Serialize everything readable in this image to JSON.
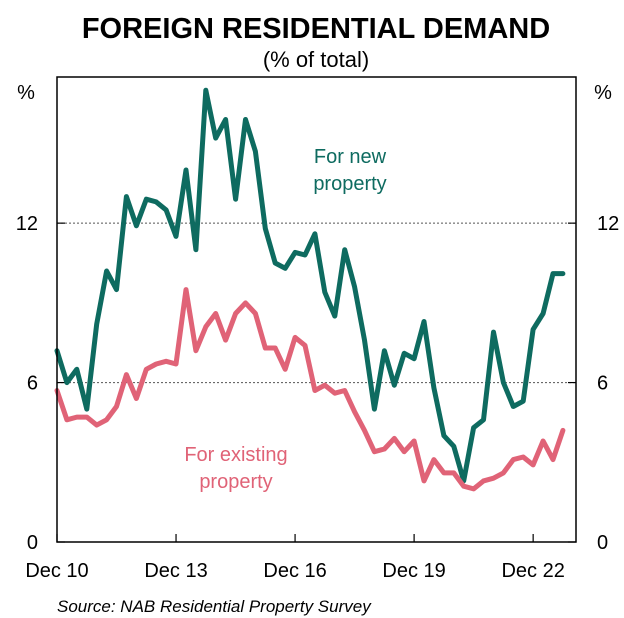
{
  "chart_data": {
    "type": "line",
    "title": "FOREIGN RESIDENTIAL DEMAND",
    "subtitle": "(% of total)",
    "ylabel_left": "%",
    "ylabel_right": "%",
    "ylim": [
      0,
      17.5
    ],
    "yticks": [
      "0",
      "6",
      "12"
    ],
    "ytick_values": [
      0,
      6,
      12
    ],
    "xticks": [
      "Dec 10",
      "Dec 13",
      "Dec 16",
      "Dec 19",
      "Dec 22"
    ],
    "xtick_values": [
      2010.92,
      2013.92,
      2016.92,
      2019.92,
      2022.92
    ],
    "xlim": [
      2010.92,
      2024.0
    ],
    "grid": "dashed horizontal at 6 and 12",
    "source": "Source: NAB Residential Property Survey",
    "series": [
      {
        "name": "For new property",
        "label": [
          "For new",
          "property"
        ],
        "color": "#0e6b60",
        "x": [
          2010.92,
          2011.17,
          2011.42,
          2011.67,
          2011.92,
          2012.17,
          2012.42,
          2012.67,
          2012.92,
          2013.17,
          2013.42,
          2013.67,
          2013.92,
          2014.17,
          2014.42,
          2014.67,
          2014.92,
          2015.17,
          2015.42,
          2015.67,
          2015.92,
          2016.17,
          2016.42,
          2016.67,
          2016.92,
          2017.17,
          2017.42,
          2017.67,
          2017.92,
          2018.17,
          2018.42,
          2018.67,
          2018.92,
          2019.17,
          2019.42,
          2019.67,
          2019.92,
          2020.17,
          2020.42,
          2020.67,
          2020.92,
          2021.17,
          2021.42,
          2021.67,
          2021.92,
          2022.17,
          2022.42,
          2022.67,
          2022.92,
          2023.17,
          2023.42,
          2023.67
        ],
        "values": [
          7.2,
          6.0,
          6.5,
          5.0,
          8.2,
          10.2,
          9.5,
          13.0,
          11.9,
          12.9,
          12.8,
          12.5,
          11.5,
          14.0,
          11.0,
          17.0,
          15.2,
          15.9,
          12.9,
          15.9,
          14.7,
          11.8,
          10.5,
          10.3,
          10.9,
          10.8,
          11.6,
          9.4,
          8.5,
          11.0,
          9.6,
          7.6,
          5.0,
          7.2,
          5.9,
          7.1,
          6.9,
          8.3,
          5.8,
          4.0,
          3.6,
          2.3,
          4.3,
          4.6,
          7.9,
          6.0,
          5.1,
          5.3,
          8.0,
          8.6,
          10.1,
          10.1
        ]
      },
      {
        "name": "For existing property",
        "label": [
          "For existing",
          "property"
        ],
        "color": "#e06377",
        "x": [
          2010.92,
          2011.17,
          2011.42,
          2011.67,
          2011.92,
          2012.17,
          2012.42,
          2012.67,
          2012.92,
          2013.17,
          2013.42,
          2013.67,
          2013.92,
          2014.17,
          2014.42,
          2014.67,
          2014.92,
          2015.17,
          2015.42,
          2015.67,
          2015.92,
          2016.17,
          2016.42,
          2016.67,
          2016.92,
          2017.17,
          2017.42,
          2017.67,
          2017.92,
          2018.17,
          2018.42,
          2018.67,
          2018.92,
          2019.17,
          2019.42,
          2019.67,
          2019.92,
          2020.17,
          2020.42,
          2020.67,
          2020.92,
          2021.17,
          2021.42,
          2021.67,
          2021.92,
          2022.17,
          2022.42,
          2022.67,
          2022.92,
          2023.17,
          2023.42,
          2023.67
        ],
        "values": [
          5.7,
          4.6,
          4.7,
          4.7,
          4.4,
          4.6,
          5.1,
          6.3,
          5.4,
          6.5,
          6.7,
          6.8,
          6.7,
          9.5,
          7.2,
          8.1,
          8.6,
          7.6,
          8.6,
          9.0,
          8.6,
          7.3,
          7.3,
          6.5,
          7.7,
          7.4,
          5.7,
          5.9,
          5.6,
          5.7,
          4.9,
          4.2,
          3.4,
          3.5,
          3.9,
          3.4,
          3.8,
          2.3,
          3.1,
          2.6,
          2.6,
          2.1,
          2.0,
          2.3,
          2.4,
          2.6,
          3.1,
          3.2,
          2.9,
          3.8,
          3.1,
          4.2
        ]
      }
    ]
  }
}
